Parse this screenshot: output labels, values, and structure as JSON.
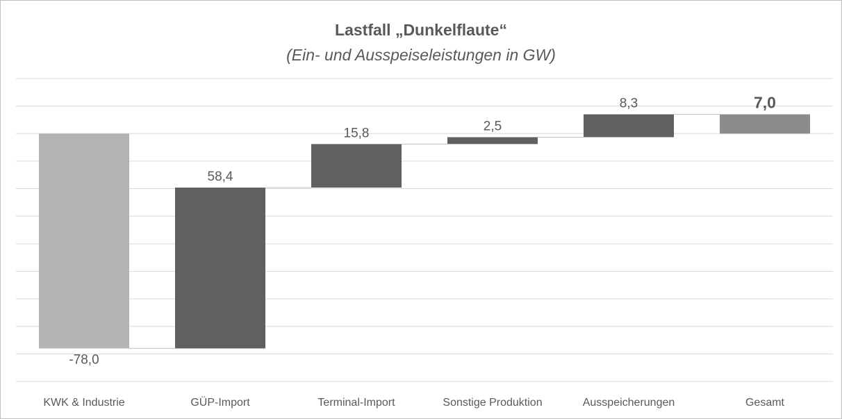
{
  "chart_data": {
    "type": "waterfall",
    "title": "Lastfall „Dunkelflaute“",
    "subtitle": "(Ein- und Ausspeiseleistungen in GW)",
    "categories": [
      "KWK & Industrie",
      "GÜP-Import",
      "Terminal-Import",
      "Sonstige Produktion",
      "Ausspeicherungen",
      "Gesamt"
    ],
    "values": [
      -78.0,
      58.4,
      15.8,
      2.5,
      8.3,
      7.0
    ],
    "value_labels": [
      "-78,0",
      "58,4",
      "15,8",
      "2,5",
      "8,3",
      "7,0"
    ],
    "is_total": [
      false,
      false,
      false,
      false,
      false,
      true
    ],
    "colors": [
      "#b3b3b3",
      "#606060",
      "#606060",
      "#606060",
      "#606060",
      "#8c8c8c"
    ],
    "ylim": [
      -90,
      20
    ],
    "yticks": [
      -90,
      -80,
      -70,
      -60,
      -50,
      -40,
      -30,
      -20,
      -10,
      0,
      10,
      20
    ],
    "grid": true
  }
}
